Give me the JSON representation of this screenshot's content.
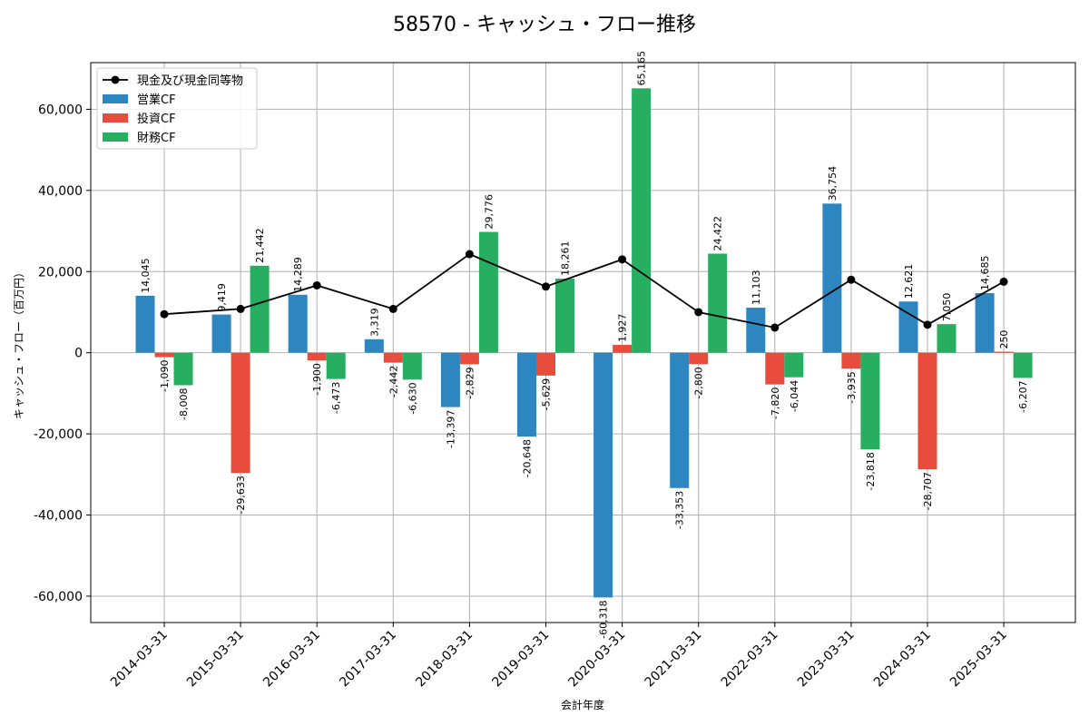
{
  "chart_data": {
    "type": "bar",
    "title": "58570 - キャッシュ・フロー推移",
    "xlabel": "会計年度",
    "ylabel": "キャッシュ・フロー（百万円）",
    "ylim": [
      -66500,
      71500
    ],
    "yticks": [
      -60000,
      -40000,
      -20000,
      0,
      20000,
      40000,
      60000
    ],
    "ytick_labels": [
      "-60,000",
      "-40,000",
      "-20,000",
      "0",
      "20,000",
      "40,000",
      "60,000"
    ],
    "grid": true,
    "legend_position": "top-left",
    "categories": [
      "2014-03-31",
      "2015-03-31",
      "2016-03-31",
      "2017-03-31",
      "2018-03-31",
      "2019-03-31",
      "2020-03-31",
      "2021-03-31",
      "2022-03-31",
      "2023-03-31",
      "2024-03-31",
      "2025-03-31"
    ],
    "series": [
      {
        "name": "営業CF",
        "type": "bar",
        "color": "#2e86c1",
        "values": [
          14045,
          9419,
          14289,
          3319,
          -13397,
          -20648,
          -60318,
          -33353,
          11103,
          36754,
          12621,
          14685
        ],
        "labels": [
          "14,045",
          "9,419",
          "14,289",
          "3,319",
          "-13,397",
          "-20,648",
          "-60,318",
          "-33,353",
          "11,103",
          "36,754",
          "12,621",
          "14,685"
        ]
      },
      {
        "name": "投資CF",
        "type": "bar",
        "color": "#e74c3c",
        "values": [
          -1090,
          -29633,
          -1900,
          -2442,
          -2829,
          -5629,
          1927,
          -2800,
          -7820,
          -3935,
          -28707,
          250
        ],
        "labels": [
          "-1,090",
          "-29,633",
          "-1,900",
          "-2,442",
          "-2,829",
          "-5,629",
          "1,927",
          "-2,800",
          "-7,820",
          "-3,935",
          "-28,707",
          "250"
        ]
      },
      {
        "name": "財務CF",
        "type": "bar",
        "color": "#27ae60",
        "values": [
          -8008,
          21442,
          -6473,
          -6630,
          29776,
          18261,
          65165,
          24422,
          -6044,
          -23818,
          7050,
          -6207
        ],
        "labels": [
          "-8,008",
          "21,442",
          "-6,473",
          "-6,630",
          "29,776",
          "18,261",
          "65,165",
          "24,422",
          "-6,044",
          "-23,818",
          "7,050",
          "-6,207"
        ]
      },
      {
        "name": "現金及び現金同等物",
        "type": "line",
        "color": "#000000",
        "values": [
          9500,
          10800,
          16600,
          10800,
          24300,
          16300,
          23000,
          10000,
          6200,
          18000,
          6900,
          17500
        ]
      }
    ]
  }
}
